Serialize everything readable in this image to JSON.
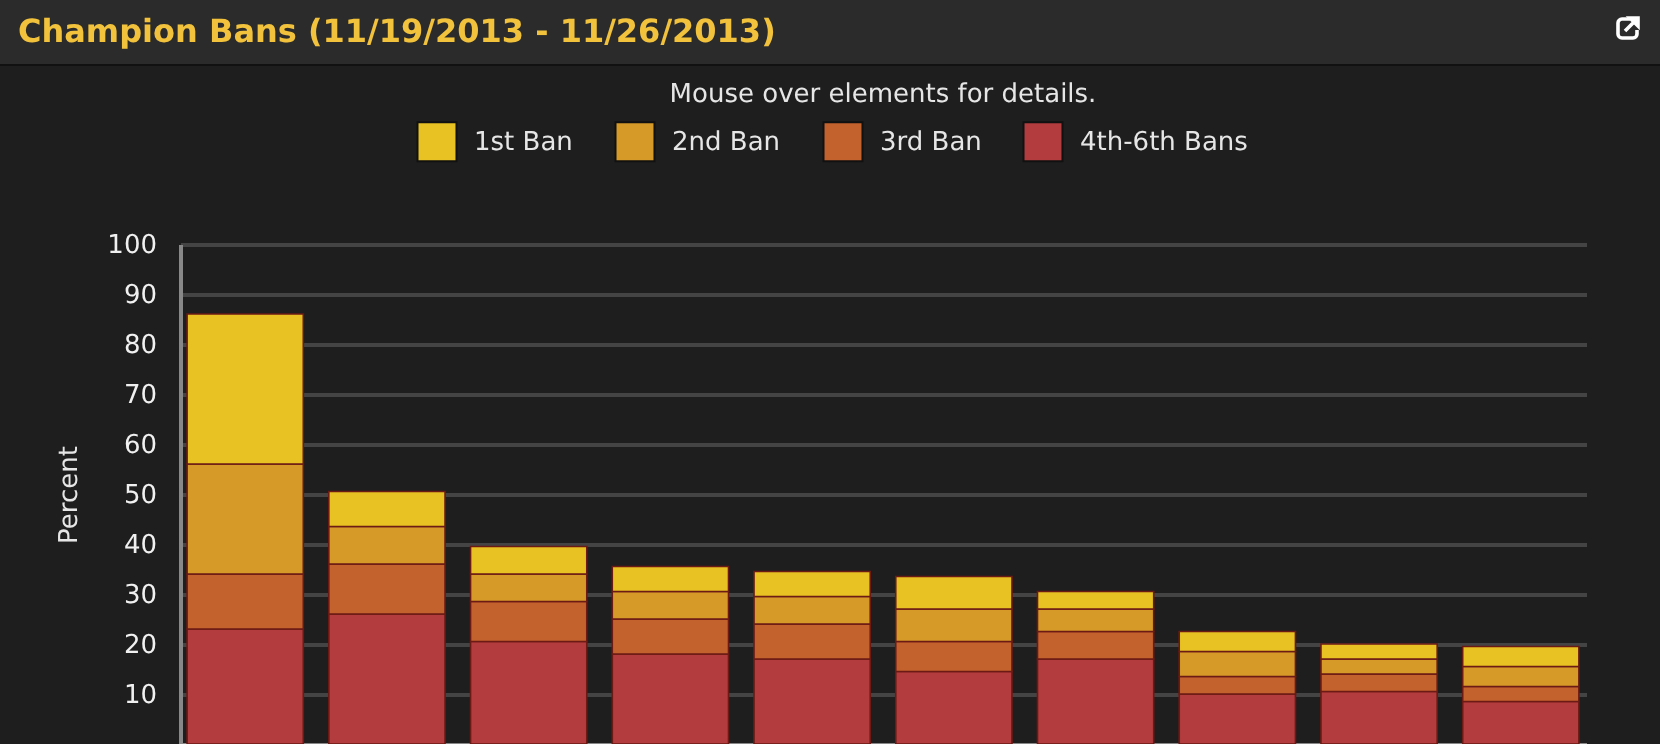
{
  "chart_data": {
    "type": "bar",
    "title": "Champion Bans (11/19/2013 - 11/26/2013)",
    "subtitle": "Mouse over elements for details.",
    "ylabel": "Percent",
    "categories": [
      null,
      null,
      null,
      null,
      null,
      null,
      null,
      null,
      null,
      null
    ],
    "stacked": true,
    "series": [
      {
        "name": "4th-6th Bans",
        "color": "#b23c3e",
        "values": [
          23,
          26,
          20.5,
          18,
          17,
          14.5,
          17,
          10,
          10.5,
          8.5
        ]
      },
      {
        "name": "3rd Ban",
        "color": "#c4622e",
        "values": [
          11,
          10,
          8,
          7,
          7,
          6,
          5.5,
          3.5,
          3.5,
          3
        ]
      },
      {
        "name": "2nd Ban",
        "color": "#d69a28",
        "values": [
          22,
          7.5,
          5.5,
          5.5,
          5.5,
          6.5,
          4.5,
          5,
          3,
          4
        ]
      },
      {
        "name": "1st Ban",
        "color": "#e8c222",
        "values": [
          30,
          7,
          5.5,
          5,
          5,
          6.5,
          3.5,
          4,
          3,
          4
        ]
      }
    ],
    "ylim": [
      0,
      100
    ],
    "yticks": [
      10,
      20,
      30,
      40,
      50,
      60,
      70,
      80,
      90,
      100
    ],
    "grid": "y",
    "legend": "top",
    "tick_labels": "y"
  }
}
